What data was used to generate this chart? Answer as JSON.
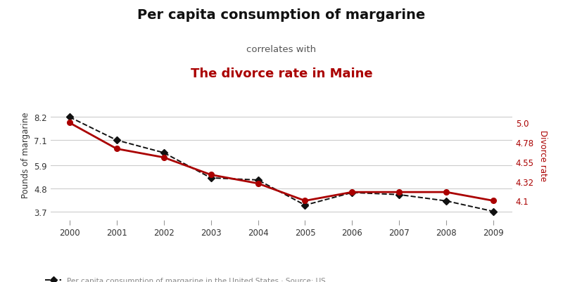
{
  "years": [
    2000,
    2001,
    2002,
    2003,
    2004,
    2005,
    2006,
    2007,
    2008,
    2009
  ],
  "margarine": [
    8.2,
    7.1,
    6.5,
    5.3,
    5.2,
    4.0,
    4.6,
    4.5,
    4.2,
    3.7
  ],
  "divorce": [
    5.0,
    4.7,
    4.6,
    4.4,
    4.3,
    4.1,
    4.2,
    4.2,
    4.2,
    4.1
  ],
  "title_line1": "Per capita consumption of margarine",
  "title_line2": "correlates with",
  "title_line3": "The divorce rate in Maine",
  "ylabel_left": "Pounds of margarine",
  "ylabel_right": "Divorce rate",
  "legend_label": "Per capita consumption of margarine in the United States · Source: US",
  "margarine_color": "#111111",
  "divorce_color": "#aa0000",
  "left_yticks": [
    3.7,
    4.8,
    5.9,
    7.1,
    8.2
  ],
  "right_yticks": [
    4.1,
    4.32,
    4.55,
    4.78,
    5.0
  ],
  "ylim_left": [
    3.3,
    9.5
  ],
  "ylim_right": [
    3.88,
    5.38
  ],
  "bg_color": "#ffffff",
  "grid_color": "#cccccc",
  "tick_label_color": "#333333",
  "legend_color": "#888888"
}
